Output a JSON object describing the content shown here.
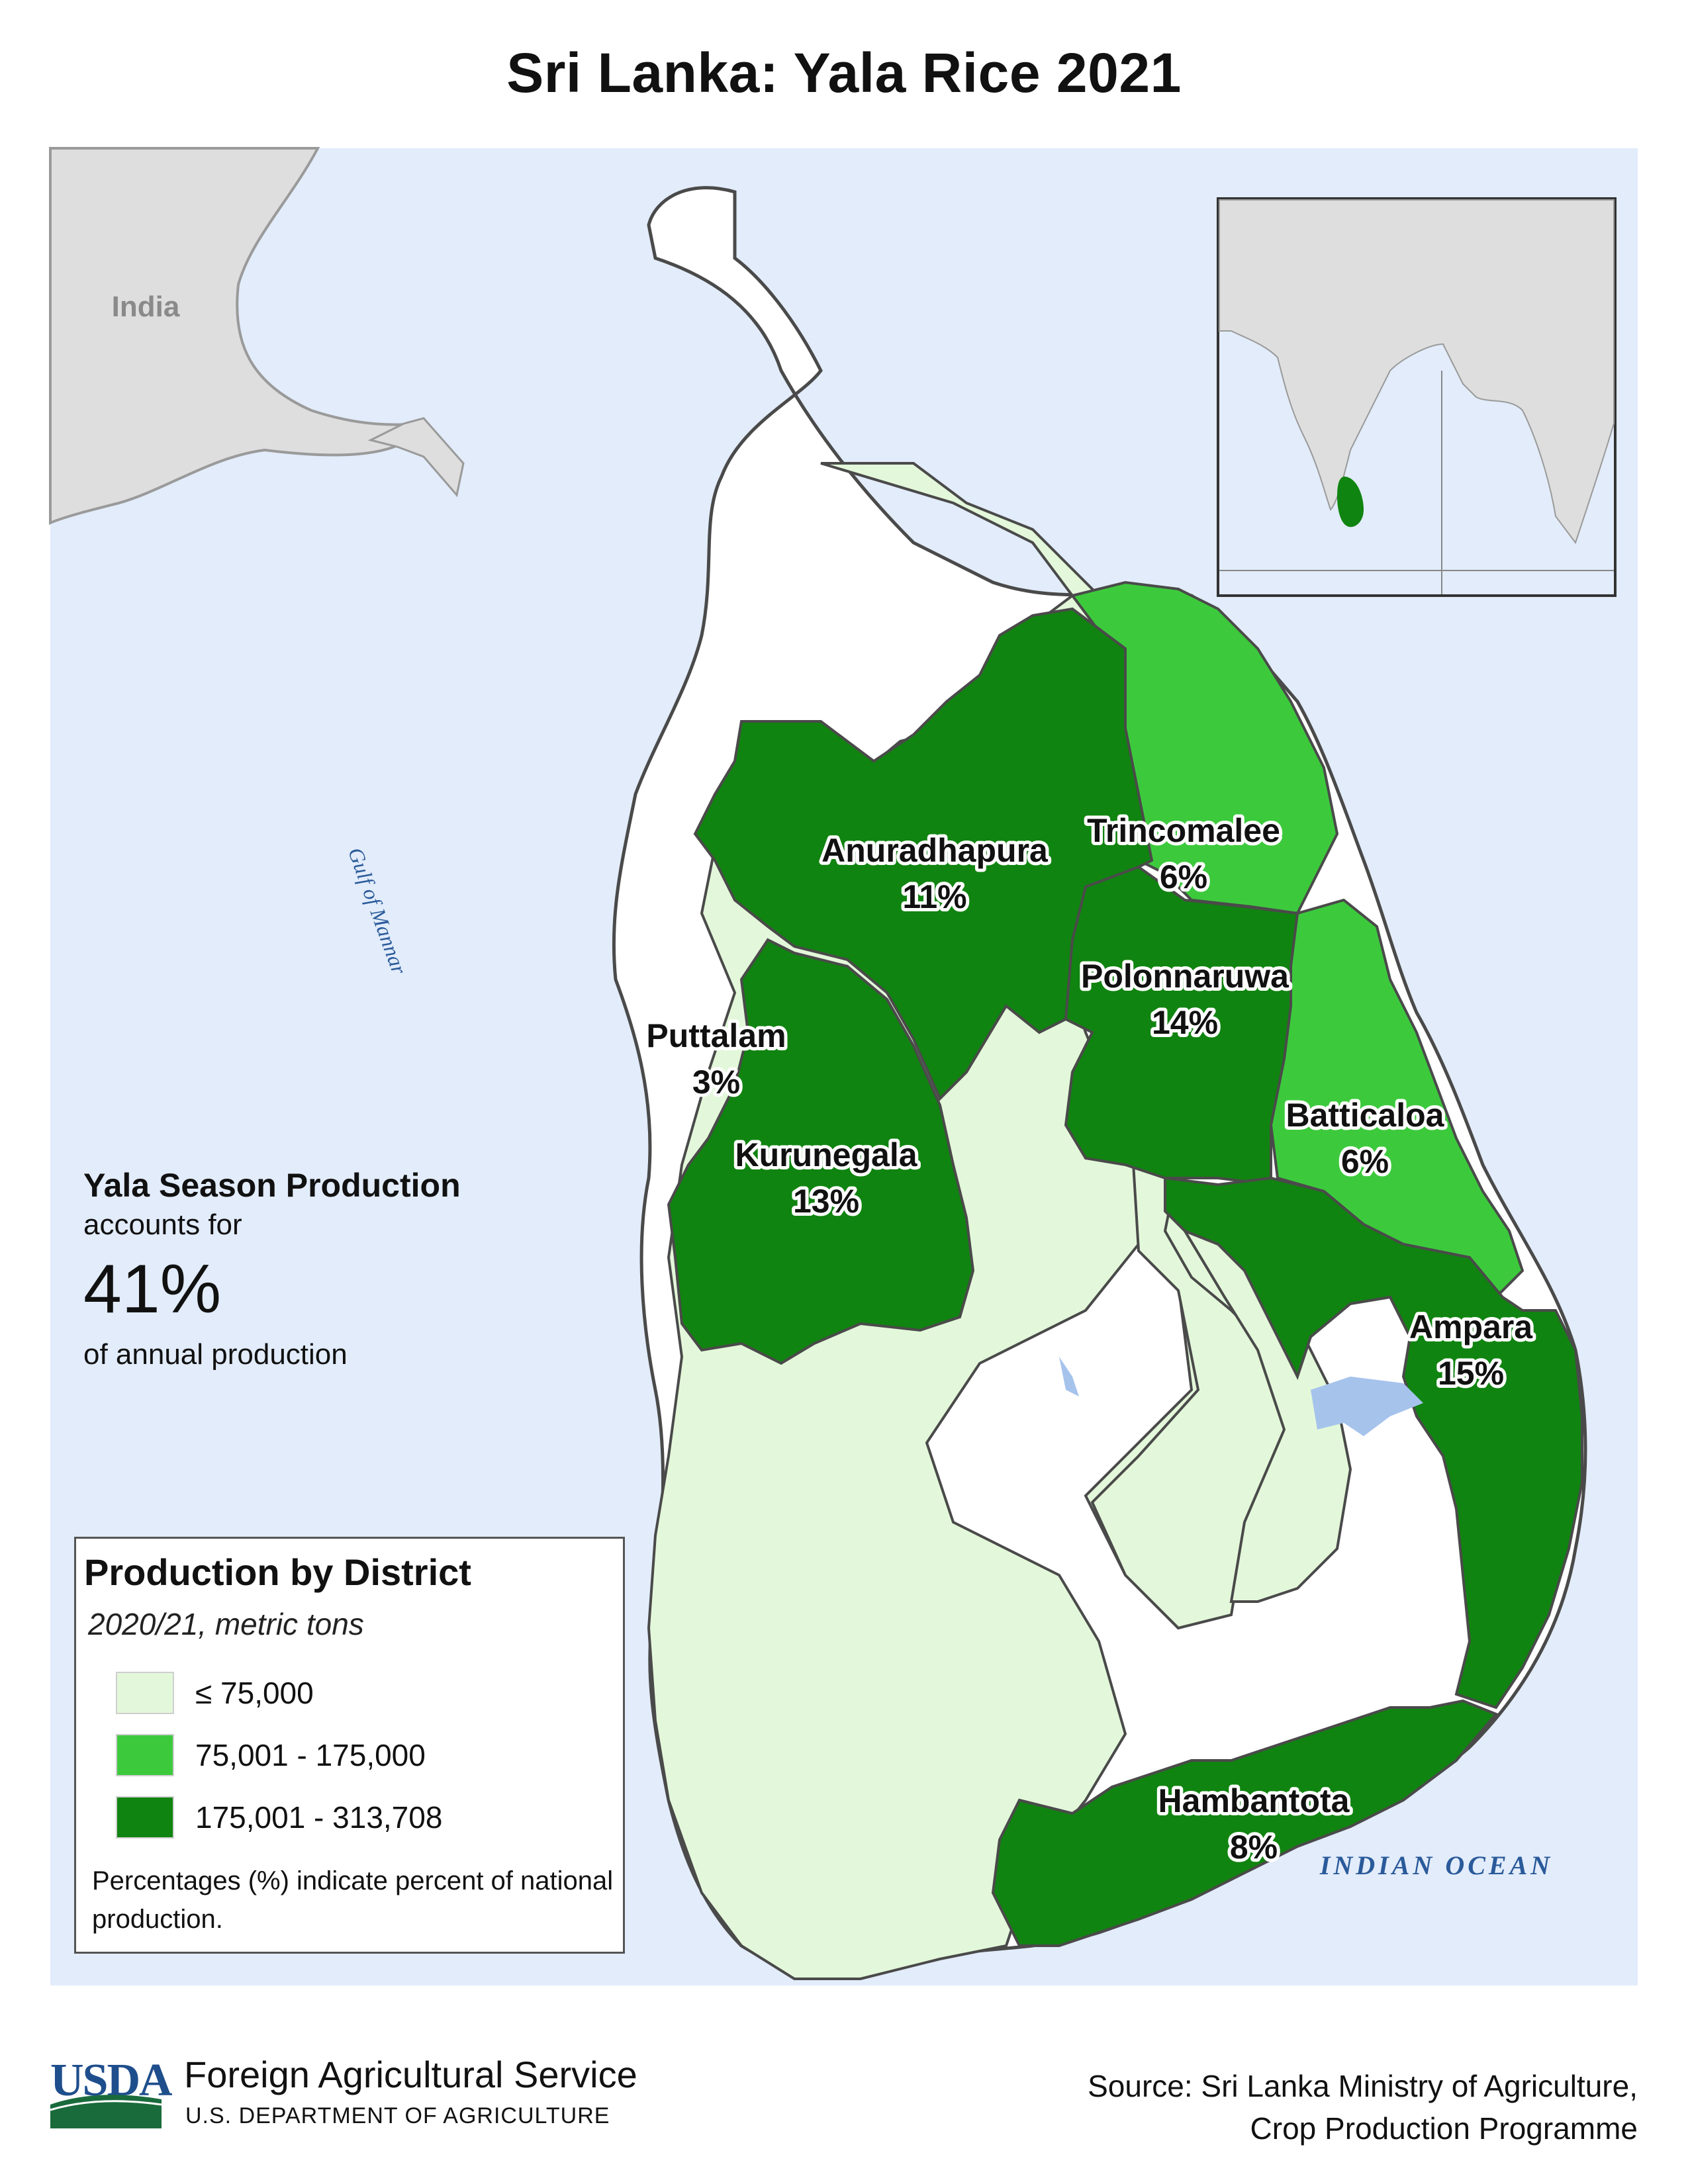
{
  "title": "Sri Lanka: Yala Rice 2021",
  "colors": {
    "ocean": "#e2ecfa",
    "land_other": "#dedede",
    "low": "#e3f8da",
    "mid": "#3cca3c",
    "high": "#108410",
    "no_data": "#ffffff",
    "water": "#a6c3ec",
    "border": "#555555"
  },
  "map_labels": {
    "india": "India",
    "gulf": "Gulf of Mannar",
    "ocean": "INDIAN OCEAN"
  },
  "districts": [
    {
      "name": "Anuradhapura",
      "share": "11%",
      "class": "high"
    },
    {
      "name": "Trincomalee",
      "share": "6%",
      "class": "mid"
    },
    {
      "name": "Polonnaruwa",
      "share": "14%",
      "class": "high"
    },
    {
      "name": "Puttalam",
      "share": "3%",
      "class": "low"
    },
    {
      "name": "Kurunegala",
      "share": "13%",
      "class": "high"
    },
    {
      "name": "Batticaloa",
      "share": "6%",
      "class": "mid"
    },
    {
      "name": "Ampara",
      "share": "15%",
      "class": "high"
    },
    {
      "name": "Hambantota",
      "share": "8%",
      "class": "high"
    }
  ],
  "stat": {
    "heading": "Yala Season Production",
    "pre": "accounts for",
    "value": "41%",
    "post": "of annual production"
  },
  "legend": {
    "title": "Production by District",
    "subtitle": "2020/21, metric tons",
    "items": [
      {
        "label": "≤ 75,000",
        "color": "#e3f8da"
      },
      {
        "label": "75,001 - 175,000",
        "color": "#3cca3c"
      },
      {
        "label": "175,001 - 313,708",
        "color": "#108410"
      }
    ],
    "note": "Percentages (%) indicate percent of national production."
  },
  "footer": {
    "logo_text": "USDA",
    "agency": "Foreign Agricultural Service",
    "department": "U.S. DEPARTMENT OF AGRICULTURE",
    "source_line1": "Source: Sri Lanka Ministry of Agriculture,",
    "source_line2": "Crop Production Programme"
  }
}
